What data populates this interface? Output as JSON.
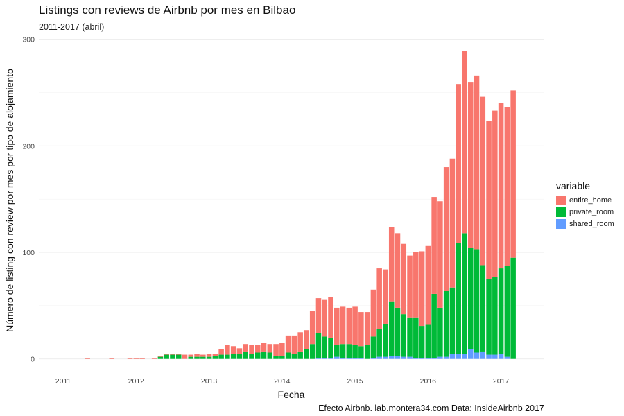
{
  "header": {
    "title": "Listings con reviews de Airbnb por mes en Bilbao",
    "subtitle": "2011-2017 (abril)",
    "caption": "Efecto Airbnb. lab.montera34.com Data: InsideAirbnb 2017"
  },
  "chart_data": {
    "type": "bar",
    "stacked": true,
    "xlabel": "Fecha",
    "ylabel": "Número de listing con review por mes por tipo de alojamiento",
    "ylim": [
      -8,
      303
    ],
    "y_ticks": [
      0,
      100,
      200,
      300
    ],
    "x_ticks": [
      "2011",
      "2012",
      "2013",
      "2014",
      "2015",
      "2016",
      "2017"
    ],
    "xlim": [
      "2010-09",
      "2017-08"
    ],
    "grid": true,
    "legend": {
      "title": "variable",
      "position": "right",
      "entries": [
        "entire_home",
        "private_room",
        "shared_room"
      ]
    },
    "colors": {
      "entire_home": "#F8766D",
      "private_room": "#00BA38",
      "shared_room": "#619CFF"
    },
    "months": [
      "2011-05",
      "2011-09",
      "2011-12",
      "2012-01",
      "2012-02",
      "2012-04",
      "2012-05",
      "2012-06",
      "2012-07",
      "2012-08",
      "2012-09",
      "2012-10",
      "2012-11",
      "2012-12",
      "2013-01",
      "2013-02",
      "2013-03",
      "2013-04",
      "2013-05",
      "2013-06",
      "2013-07",
      "2013-08",
      "2013-09",
      "2013-10",
      "2013-11",
      "2013-12",
      "2014-01",
      "2014-02",
      "2014-03",
      "2014-04",
      "2014-05",
      "2014-06",
      "2014-07",
      "2014-08",
      "2014-09",
      "2014-10",
      "2014-11",
      "2014-12",
      "2015-01",
      "2015-02",
      "2015-03",
      "2015-04",
      "2015-05",
      "2015-06",
      "2015-07",
      "2015-08",
      "2015-09",
      "2015-10",
      "2015-11",
      "2015-12",
      "2016-01",
      "2016-02",
      "2016-03",
      "2016-04",
      "2016-05",
      "2016-06",
      "2016-07",
      "2016-08",
      "2016-09",
      "2016-10",
      "2016-11",
      "2016-12",
      "2017-01",
      "2017-02",
      "2017-03"
    ],
    "series": [
      {
        "name": "shared_room",
        "values": [
          0,
          0,
          0,
          0,
          0,
          0,
          0,
          0,
          0,
          0,
          0,
          0,
          0,
          0,
          0,
          0,
          0,
          0,
          0,
          0,
          0,
          0,
          0,
          0,
          0,
          0,
          0,
          0,
          0,
          0,
          0,
          0,
          1,
          1,
          1,
          2,
          1,
          1,
          1,
          1,
          0,
          1,
          2,
          2,
          3,
          3,
          2,
          2,
          1,
          1,
          1,
          1,
          2,
          2,
          5,
          5,
          5,
          9,
          6,
          7,
          4,
          4,
          5,
          2,
          0
        ]
      },
      {
        "name": "private_room",
        "values": [
          0,
          0,
          0,
          0,
          0,
          0,
          2,
          4,
          4,
          4,
          0,
          2,
          2,
          2,
          2,
          3,
          4,
          4,
          5,
          5,
          7,
          5,
          6,
          7,
          6,
          3,
          3,
          6,
          5,
          7,
          9,
          14,
          23,
          20,
          19,
          11,
          13,
          13,
          12,
          11,
          13,
          20,
          26,
          31,
          51,
          45,
          40,
          37,
          38,
          30,
          31,
          60,
          46,
          62,
          62,
          104,
          113,
          95,
          97,
          81,
          71,
          73,
          80,
          85,
          95
        ]
      },
      {
        "name": "entire_home",
        "values": [
          1,
          1,
          1,
          1,
          1,
          1,
          1,
          1,
          1,
          1,
          4,
          2,
          3,
          2,
          3,
          2,
          5,
          9,
          7,
          5,
          7,
          8,
          7,
          8,
          8,
          11,
          12,
          16,
          17,
          18,
          18,
          31,
          33,
          35,
          38,
          35,
          35,
          34,
          36,
          32,
          31,
          44,
          57,
          51,
          70,
          70,
          66,
          58,
          61,
          70,
          74,
          91,
          100,
          116,
          121,
          149,
          171,
          156,
          163,
          158,
          148,
          156,
          155,
          149,
          157
        ]
      }
    ]
  }
}
